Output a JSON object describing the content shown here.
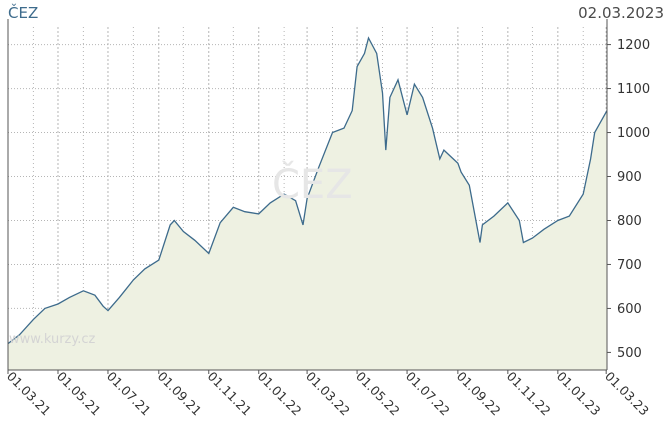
{
  "header": {
    "title": "ČEZ",
    "date": "02.03.2023"
  },
  "watermark": "www.kurzy.cz",
  "ghost_label": "ČEZ",
  "colors": {
    "line": "#3d6b8c",
    "fill": "#eef1e2",
    "grid": "#b5b5b5",
    "axis": "#555555"
  },
  "chart_data": {
    "type": "area",
    "title": "ČEZ",
    "xlabel": "",
    "ylabel": "",
    "ylim": [
      460,
      1240
    ],
    "yticks": [
      500,
      600,
      700,
      800,
      900,
      1000,
      1100,
      1200
    ],
    "xlim": [
      "2021-03-01",
      "2023-03-02"
    ],
    "xticks": [
      "01.03.21",
      "01.05.21",
      "01.07.21",
      "01.09.21",
      "01.11.21",
      "01.01.22",
      "01.03.22",
      "01.05.22",
      "01.07.22",
      "01.09.22",
      "01.11.22",
      "01.01.23",
      "01.03.23"
    ],
    "grid": true,
    "series": [
      {
        "name": "",
        "x": [
          "2021-03-01",
          "2021-03-15",
          "2021-04-01",
          "2021-04-15",
          "2021-05-01",
          "2021-05-15",
          "2021-06-01",
          "2021-06-15",
          "2021-06-25",
          "2021-07-01",
          "2021-07-15",
          "2021-08-01",
          "2021-08-15",
          "2021-09-01",
          "2021-09-15",
          "2021-09-20",
          "2021-10-01",
          "2021-10-15",
          "2021-11-01",
          "2021-11-15",
          "2021-12-01",
          "2021-12-15",
          "2022-01-01",
          "2022-01-15",
          "2022-02-01",
          "2022-02-15",
          "2022-02-24",
          "2022-03-01",
          "2022-03-15",
          "2022-04-01",
          "2022-04-15",
          "2022-04-25",
          "2022-05-01",
          "2022-05-10",
          "2022-05-15",
          "2022-05-25",
          "2022-06-01",
          "2022-06-05",
          "2022-06-10",
          "2022-06-20",
          "2022-07-01",
          "2022-07-10",
          "2022-07-20",
          "2022-08-01",
          "2022-08-10",
          "2022-08-15",
          "2022-09-01",
          "2022-09-05",
          "2022-09-15",
          "2022-09-28",
          "2022-10-01",
          "2022-10-15",
          "2022-11-01",
          "2022-11-15",
          "2022-11-20",
          "2022-12-01",
          "2022-12-15",
          "2023-01-01",
          "2023-01-15",
          "2023-02-01",
          "2023-02-10",
          "2023-02-15",
          "2023-03-02"
        ],
        "values": [
          520,
          540,
          575,
          600,
          610,
          625,
          640,
          630,
          605,
          595,
          625,
          665,
          690,
          710,
          790,
          800,
          775,
          755,
          725,
          795,
          830,
          820,
          815,
          840,
          860,
          845,
          790,
          850,
          920,
          1000,
          1010,
          1050,
          1150,
          1180,
          1215,
          1180,
          1090,
          960,
          1080,
          1120,
          1040,
          1110,
          1080,
          1010,
          940,
          960,
          930,
          910,
          880,
          750,
          790,
          810,
          840,
          800,
          750,
          760,
          780,
          800,
          810,
          860,
          940,
          1000,
          1050
        ]
      }
    ]
  }
}
